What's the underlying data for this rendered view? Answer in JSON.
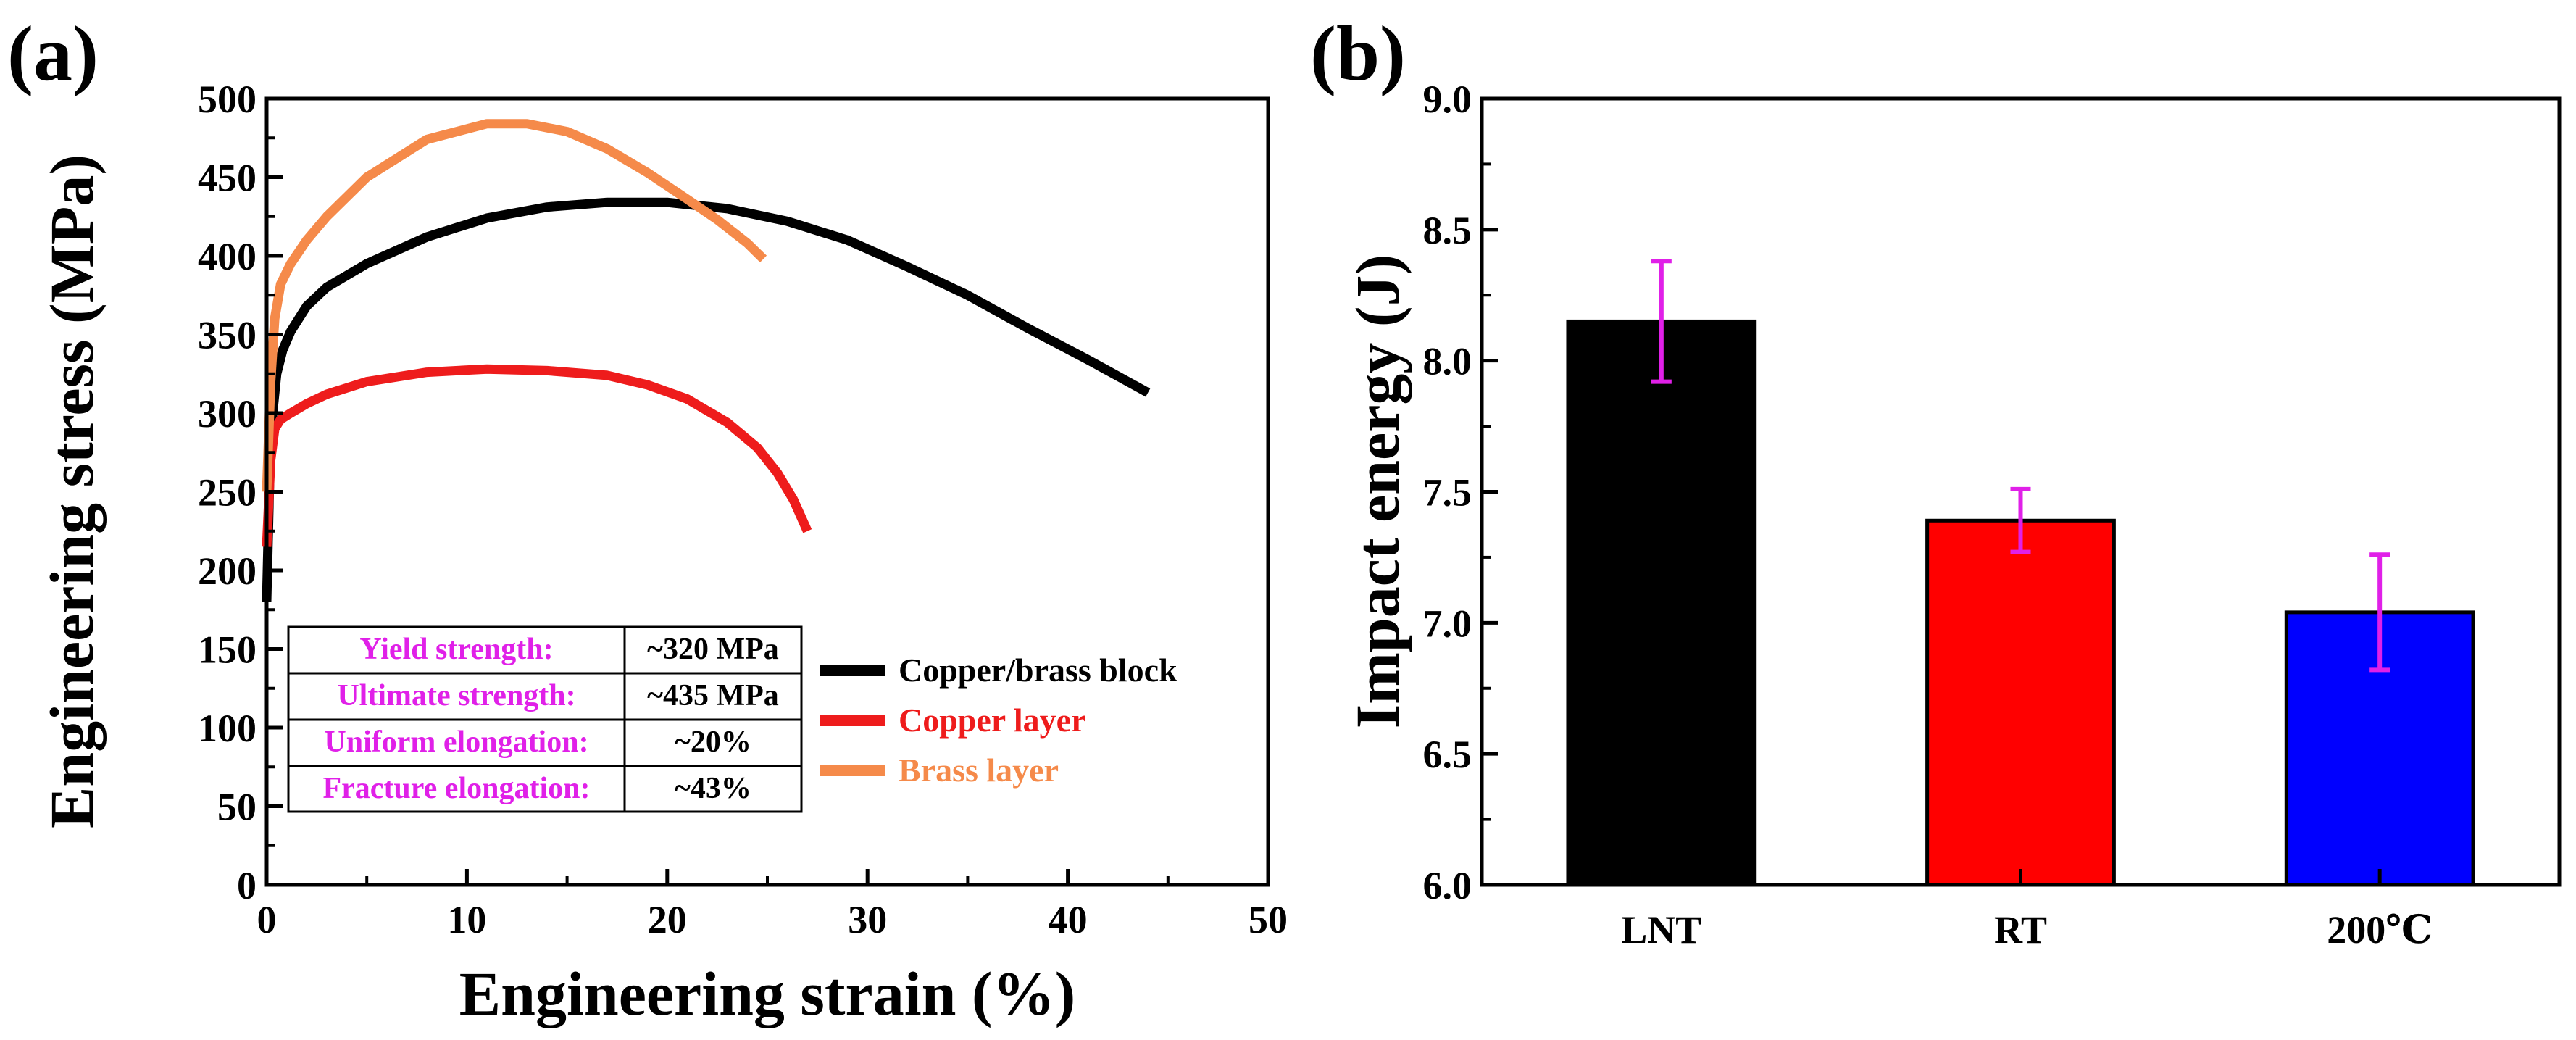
{
  "colors": {
    "black": "#000000",
    "copper": "#ee1c1c",
    "brass": "#f58a4a",
    "magenta": "#e020e8",
    "lnt_bar": "#000000",
    "rt_bar": "#ff0000",
    "bar_200": "#0000ff"
  },
  "chart_data": [
    {
      "type": "line",
      "panel_label": "(a)",
      "title": "",
      "xlabel": "Engineering strain (%)",
      "ylabel": "Engineering stress (MPa)",
      "xlim": [
        0,
        50
      ],
      "ylim": [
        0,
        500
      ],
      "xticks": [
        "0",
        "10",
        "20",
        "30",
        "40",
        "50"
      ],
      "yticks": [
        "0",
        "50",
        "100",
        "150",
        "200",
        "250",
        "300",
        "350",
        "400",
        "450",
        "500"
      ],
      "series": [
        {
          "name": "Copper/brass block",
          "color_key": "black",
          "x": [
            0,
            0.15,
            0.3,
            0.5,
            0.8,
            1.2,
            2,
            3,
            5,
            8,
            11,
            14,
            17,
            20,
            23,
            26,
            29,
            32,
            35,
            38,
            41,
            44
          ],
          "y": [
            180,
            260,
            300,
            325,
            340,
            352,
            368,
            380,
            395,
            412,
            424,
            431,
            434,
            434,
            430,
            422,
            410,
            393,
            375,
            354,
            334,
            313
          ]
        },
        {
          "name": "Copper layer",
          "color_key": "copper",
          "x": [
            0,
            0.2,
            0.4,
            0.7,
            1.2,
            2,
            3,
            5,
            8,
            11,
            14,
            17,
            19,
            21,
            23,
            24.5,
            25.5,
            26.3,
            27
          ],
          "y": [
            215,
            270,
            290,
            296,
            300,
            306,
            312,
            320,
            326,
            328,
            327,
            324,
            318,
            309,
            294,
            278,
            262,
            245,
            225
          ]
        },
        {
          "name": "Brass layer",
          "color_key": "brass",
          "x": [
            0,
            0.2,
            0.4,
            0.7,
            1.2,
            2,
            3,
            5,
            8,
            11,
            13,
            15,
            17,
            19,
            21,
            22.5,
            24,
            24.8
          ],
          "y": [
            250,
            320,
            360,
            382,
            395,
            410,
            425,
            450,
            474,
            484,
            484,
            479,
            468,
            453,
            436,
            423,
            408,
            398
          ]
        }
      ],
      "legend": {
        "placement": "right-center",
        "entries": [
          "Copper/brass block",
          "Copper layer",
          "Brass layer"
        ]
      },
      "table": {
        "rows": [
          {
            "label": "Yield strength:",
            "value": "~320 MPa"
          },
          {
            "label": "Ultimate strength:",
            "value": "~435 MPa"
          },
          {
            "label": "Uniform elongation:",
            "value": "~20%"
          },
          {
            "label": "Fracture elongation:",
            "value": "~43%"
          }
        ]
      }
    },
    {
      "type": "bar",
      "panel_label": "(b)",
      "title": "",
      "xlabel": "",
      "ylabel": "Impact energy (J)",
      "ylim": [
        6.0,
        9.0
      ],
      "yticks": [
        "6.0",
        "6.5",
        "7.0",
        "7.5",
        "8.0",
        "8.5",
        "9.0"
      ],
      "categories": [
        "LNT",
        "RT",
        "200℃"
      ],
      "values": [
        8.15,
        7.39,
        7.04
      ],
      "errors": [
        0.23,
        0.12,
        0.22
      ],
      "bar_color_keys": [
        "lnt_bar",
        "rt_bar",
        "bar_200"
      ]
    }
  ]
}
